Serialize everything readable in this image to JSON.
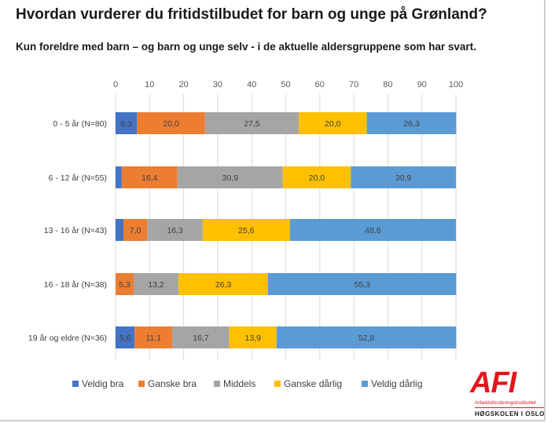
{
  "header": {
    "title": "Hvordan vurderer du fritidstilbudet for barn og unge på Grønland?",
    "subtitle": "Kun foreldre med barn – og barn og unge selv - i de aktuelle aldersgruppene som har svart."
  },
  "chart_data": {
    "type": "bar",
    "orientation": "horizontal",
    "stacked": true,
    "title": "Hvordan vurderer du fritidstilbudet for barn og unge på Grønland?",
    "xlim": [
      0,
      100
    ],
    "xticks": [
      0,
      10,
      20,
      30,
      40,
      50,
      60,
      70,
      80,
      90,
      100
    ],
    "grid": true,
    "legend_position": "bottom",
    "categories": [
      "0 - 5 år (N=80)",
      "6 - 12 år (N=55)",
      "13 - 16 år (N=43)",
      "16 - 18 år (N=38)",
      "19 år og eldre (N=36)"
    ],
    "series": [
      {
        "name": "Veldig bra",
        "color": "#4472c4",
        "values": [
          6.3,
          1.8,
          2.3,
          0,
          5.6
        ],
        "labels": [
          "6,3",
          "",
          "",
          "",
          "5,6"
        ]
      },
      {
        "name": "Ganske bra",
        "color": "#ed7d31",
        "values": [
          20.0,
          16.4,
          7.0,
          5.3,
          11.1
        ],
        "labels": [
          "20,0",
          "16,4",
          "7,0",
          "5,3",
          "11,1"
        ]
      },
      {
        "name": "Middels",
        "color": "#a5a5a5",
        "values": [
          27.5,
          30.9,
          16.3,
          13.2,
          16.7
        ],
        "labels": [
          "27,5",
          "30,9",
          "16,3",
          "13,2",
          "16,7"
        ]
      },
      {
        "name": "Ganske dårlig",
        "color": "#ffc000",
        "values": [
          20.0,
          20.0,
          25.6,
          26.3,
          13.9
        ],
        "labels": [
          "20,0",
          "20,0",
          "25,6",
          "26,3",
          "13,9"
        ]
      },
      {
        "name": "Veldig dårlig",
        "color": "#5b9bd5",
        "values": [
          26.3,
          30.9,
          48.8,
          55.3,
          52.8
        ],
        "labels": [
          "26,3",
          "30,9",
          "48,8",
          "55,3",
          "52,8"
        ]
      }
    ]
  },
  "logo": {
    "mark": "AFI",
    "name": "Arbeidsforskningsinstituttet",
    "school": "HØGSKOLEN I OSLO"
  }
}
